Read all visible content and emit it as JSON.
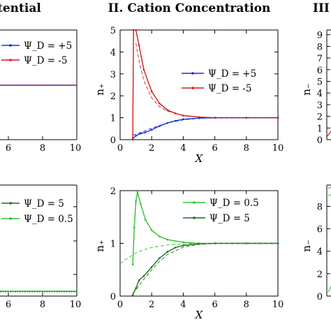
{
  "headers": {
    "left_fragment": "tential",
    "center": "II. Cation Concentration",
    "right_fragment": "III"
  },
  "colors": {
    "blue": "#1a2fd6",
    "red": "#d61a1a",
    "green_light": "#2fbf2f",
    "green_dark": "#1f6e1f",
    "axis": "#000000"
  },
  "chart_data": [
    {
      "id": "top-left-partial",
      "type": "line",
      "xlim": [
        4.8,
        10
      ],
      "xticks": [
        6,
        8,
        10
      ],
      "series": [
        {
          "name": "Ψ_D = +5",
          "color": "#1a2fd6",
          "x": [
            4.8,
            10
          ],
          "y": [
            0.5,
            0.5
          ]
        },
        {
          "name": "Ψ_D = -5",
          "color": "#d61a1a",
          "x": [
            4.8,
            10
          ],
          "y": [
            0.5,
            0.5
          ]
        }
      ],
      "legend": [
        "Ψ_D = +5",
        "Ψ_D = -5"
      ]
    },
    {
      "id": "top-middle",
      "type": "line",
      "title": "II. Cation Concentration",
      "xlabel": "X",
      "ylabel": "n₊",
      "xlim": [
        0,
        10
      ],
      "ylim": [
        0,
        5
      ],
      "xticks": [
        0,
        2,
        4,
        6,
        8,
        10
      ],
      "yticks": [
        0,
        1,
        2,
        3,
        4,
        5
      ],
      "legend": [
        "Ψ_D = +5",
        "Ψ_D = -5"
      ],
      "legend_position": "top-right",
      "series": [
        {
          "name": "Ψ_D = +5",
          "color": "#1a2fd6",
          "x": [
            0.8,
            1.0,
            1.3,
            1.6,
            2.0,
            2.5,
            3.0,
            3.5,
            4.0,
            5.0,
            6.0,
            8.0,
            10.0
          ],
          "y": [
            0.05,
            0.18,
            0.28,
            0.33,
            0.45,
            0.62,
            0.76,
            0.86,
            0.93,
            0.98,
            1.0,
            1.0,
            1.0
          ]
        },
        {
          "name": "Ψ_D = -5",
          "color": "#d61a1a",
          "x": [
            0.8,
            0.85,
            1.0,
            1.2,
            1.5,
            2.0,
            2.5,
            3.0,
            3.5,
            4.0,
            5.0,
            6.0,
            8.0,
            10.0
          ],
          "y": [
            0,
            5.0,
            5.0,
            4.3,
            3.2,
            2.2,
            1.65,
            1.35,
            1.2,
            1.1,
            1.03,
            1.0,
            1.0,
            1.0
          ]
        },
        {
          "name": "",
          "style": "dashed",
          "color": "#d61a1a",
          "x": [
            1.0,
            1.2,
            1.5,
            2.0,
            2.5,
            3.0,
            4.0,
            5.0,
            6.0,
            8.0,
            10.0
          ],
          "y": [
            4.4,
            3.6,
            2.7,
            1.9,
            1.5,
            1.3,
            1.1,
            1.03,
            1.0,
            1.0,
            1.0
          ]
        },
        {
          "name": "",
          "style": "dashed",
          "color": "#1a2fd6",
          "x": [
            0.8,
            1.0,
            1.5,
            2.0,
            2.5,
            3.0,
            4.0,
            5.0,
            6.0,
            8.0,
            10.0
          ],
          "y": [
            0.2,
            0.25,
            0.38,
            0.52,
            0.65,
            0.76,
            0.9,
            0.97,
            0.99,
            1.0,
            1.0
          ]
        }
      ]
    },
    {
      "id": "top-right-partial",
      "type": "line",
      "ylabel": "n₋",
      "yticks": [
        0,
        1,
        2,
        3,
        4,
        5,
        6,
        7,
        8,
        9
      ]
    },
    {
      "id": "bottom-left-partial",
      "type": "line",
      "xlim": [
        4.8,
        10
      ],
      "xticks": [
        6,
        8,
        10
      ],
      "legend": [
        "Ψ_D = 5",
        "Ψ_D = 0.5"
      ],
      "series": [
        {
          "name": "Ψ_D = 5",
          "color": "#1f6e1f",
          "x": [
            4.8,
            10
          ],
          "y": [
            0.1,
            0.1
          ]
        },
        {
          "name": "Ψ_D = 0.5",
          "color": "#2fbf2f",
          "x": [
            4.8,
            10
          ],
          "y": [
            0.1,
            0.1
          ]
        }
      ]
    },
    {
      "id": "bottom-middle",
      "type": "line",
      "xlabel": "X",
      "ylabel": "n₊",
      "xlim": [
        0,
        10
      ],
      "ylim": [
        0,
        2
      ],
      "xticks": [
        0,
        2,
        4,
        6,
        8,
        10
      ],
      "yticks": [
        0,
        1,
        2
      ],
      "legend": [
        "Ψ_D = 0.5",
        "Ψ_D = 5"
      ],
      "legend_position": "top-right",
      "series": [
        {
          "name": "Ψ_D = 0.5",
          "color": "#2fbf2f",
          "x": [
            0.8,
            0.9,
            1.0,
            1.1,
            1.3,
            1.6,
            2.0,
            2.5,
            3.0,
            4.0,
            5.0,
            6.0,
            8.0,
            10.0
          ],
          "y": [
            0.6,
            1.3,
            1.8,
            1.97,
            1.75,
            1.45,
            1.25,
            1.13,
            1.07,
            1.02,
            1.0,
            1.0,
            1.0,
            1.0
          ]
        },
        {
          "name": "Ψ_D = 5",
          "color": "#1f6e1f",
          "x": [
            0.8,
            1.0,
            1.2,
            1.5,
            2.0,
            2.5,
            3.0,
            3.5,
            4.0,
            5.0,
            6.0,
            8.0,
            10.0
          ],
          "y": [
            0.02,
            0.15,
            0.3,
            0.38,
            0.55,
            0.72,
            0.84,
            0.92,
            0.96,
            0.99,
            1.0,
            1.0,
            1.0
          ]
        },
        {
          "name": "",
          "style": "dashed",
          "color": "#2fbf2f",
          "x": [
            0,
            0.5,
            1.0,
            1.5,
            2.0,
            3.0,
            4.0,
            5.0,
            6.0,
            8.0,
            10.0
          ],
          "y": [
            0.62,
            0.72,
            0.82,
            0.88,
            0.92,
            0.97,
            0.99,
            1.0,
            1.0,
            1.0,
            1.0
          ]
        },
        {
          "name": "",
          "style": "dashed",
          "color": "#1f6e1f",
          "x": [
            0.8,
            1.0,
            1.5,
            2.0,
            2.5,
            3.0,
            4.0,
            5.0,
            6.0,
            8.0,
            10.0
          ],
          "y": [
            0.05,
            0.12,
            0.32,
            0.5,
            0.66,
            0.79,
            0.93,
            0.98,
            1.0,
            1.0,
            1.0
          ]
        }
      ]
    },
    {
      "id": "bottom-right-partial",
      "type": "line",
      "ylabel": "n₋",
      "yticks": [
        0,
        2,
        4,
        6,
        8
      ]
    }
  ]
}
